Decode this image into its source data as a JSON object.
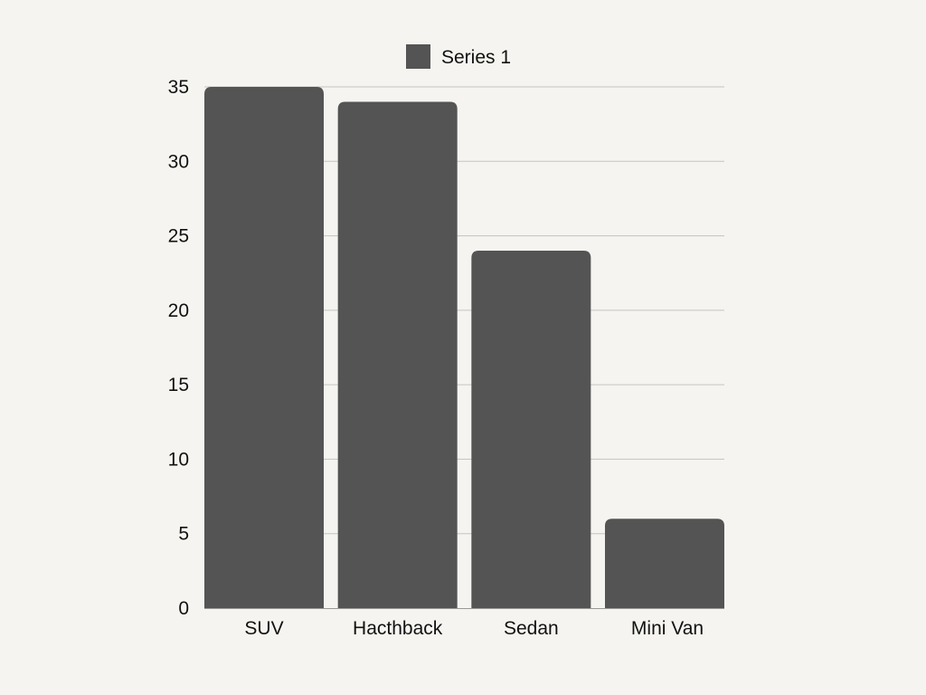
{
  "chart_data": {
    "type": "bar",
    "categories": [
      "SUV",
      "Hacthback",
      "Sedan",
      "Mini Van"
    ],
    "series": [
      {
        "name": "Series 1",
        "values": [
          35,
          34,
          24,
          6
        ],
        "color": "#545454"
      }
    ],
    "yticks": [
      "0",
      "5",
      "10",
      "15",
      "20",
      "25",
      "30",
      "35"
    ],
    "ylim": [
      0,
      35
    ],
    "grid": true,
    "legend_position": "top-center",
    "title": "",
    "xlabel": "",
    "ylabel": ""
  },
  "colors": {
    "background": "#f5f4f0",
    "bar": "#545454",
    "grid": "#c4c3bf"
  }
}
